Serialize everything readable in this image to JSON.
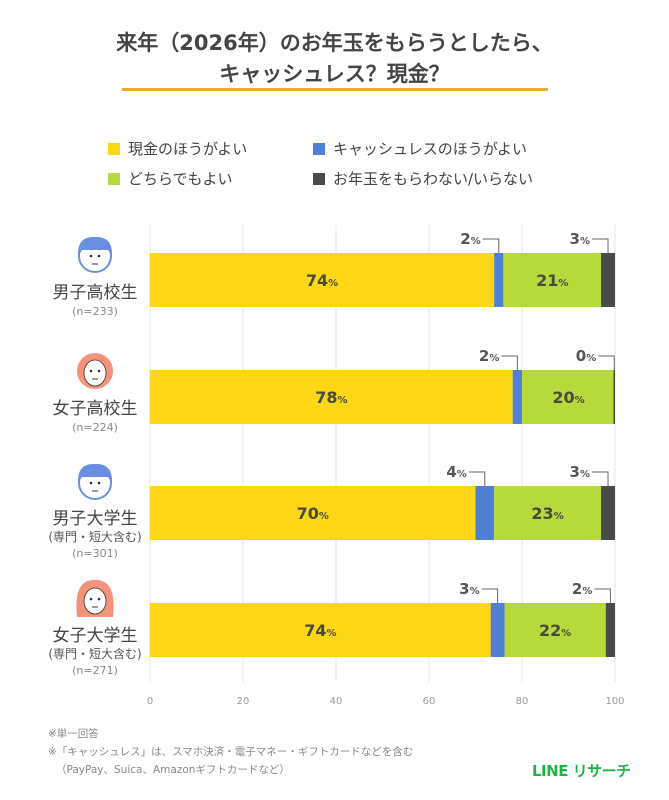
{
  "title_line1": "来年（2026年）のお年玉をもらうとしたら、",
  "title_line2": "キャッシュレス？現金？",
  "colors": {
    "cash": "#FDD716",
    "cashless": "#5080D6",
    "either": "#B6D93C",
    "none": "#4A4A4A",
    "rule": "#F0A830",
    "brand": "#1DB446"
  },
  "chart_data": {
    "type": "bar",
    "orientation": "horizontal",
    "stacked": true,
    "xlim": [
      0,
      100
    ],
    "xticks": [
      "0",
      "20",
      "40",
      "60",
      "80",
      "100"
    ],
    "grid": true,
    "legend_placement": "top",
    "unit": "%",
    "categories": [
      "男子高校生",
      "女子高校生",
      "男子大学生",
      "女子大学生"
    ],
    "category_sub": [
      "",
      "",
      "(専門・短大含む)",
      "(専門・短大含む)"
    ],
    "category_n": [
      "(n=233)",
      "(n=224)",
      "(n=301)",
      "(n=271)"
    ],
    "avatars": [
      "boy-avatar-icon",
      "girl-avatar-icon",
      "boy-avatar-icon",
      "girl-long-hair-avatar-icon"
    ],
    "series": [
      {
        "name": "現金のほうがよい",
        "values": [
          74,
          78,
          70,
          74
        ]
      },
      {
        "name": "キャッシュレスのほうがよい",
        "values": [
          2,
          2,
          4,
          3
        ]
      },
      {
        "name": "どちらでもよい",
        "values": [
          21,
          20,
          23,
          22
        ]
      },
      {
        "name": "お年玉をもらわない/いらない",
        "values": [
          3,
          0,
          3,
          2
        ]
      }
    ]
  },
  "notes": [
    "※単一回答",
    "※「キャッシュレス」は、スマホ決済・電子マネー・ギフトカードなどを含む",
    "（PayPay、Suica、Amazonギフトカードなど）"
  ],
  "logo": "LINE リサーチ"
}
